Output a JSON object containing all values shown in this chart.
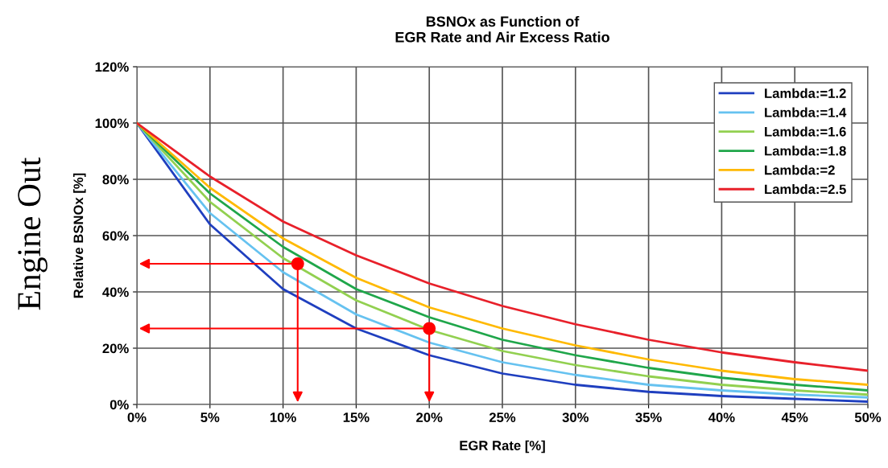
{
  "chart_data": {
    "type": "line",
    "title": "BSNOx as Function of\nEGR Rate and Air Excess Ratio",
    "xlabel": "EGR Rate [%]",
    "ylabel": "Relative BSNOx [%]",
    "annotations": [
      "Engine Out"
    ],
    "x": [
      0,
      5,
      10,
      15,
      20,
      25,
      30,
      35,
      40,
      45,
      50
    ],
    "series": [
      {
        "name": "Lambda:=1.2",
        "color": "#1f3fbf",
        "values": [
          100,
          64,
          41,
          27,
          17.5,
          11,
          7,
          4.5,
          3,
          2,
          1
        ]
      },
      {
        "name": "Lambda:=1.4",
        "color": "#66c2f0",
        "values": [
          100,
          68,
          47,
          32,
          22,
          15,
          10.5,
          7,
          5,
          3.5,
          2.5
        ]
      },
      {
        "name": "Lambda:=1.6",
        "color": "#92d050",
        "values": [
          100,
          72,
          52,
          37,
          26.5,
          19,
          14,
          10,
          7,
          5,
          3.5
        ]
      },
      {
        "name": "Lambda:=1.8",
        "color": "#1fa64a",
        "values": [
          100,
          75,
          56,
          41,
          31,
          23,
          17.5,
          13,
          9.5,
          7,
          5
        ]
      },
      {
        "name": "Lambda:=2",
        "color": "#ffb900",
        "values": [
          100,
          77,
          59,
          45,
          34.5,
          27,
          21,
          16,
          12,
          9,
          7
        ]
      },
      {
        "name": "Lambda:=2.5",
        "color": "#e8202a",
        "values": [
          100,
          81,
          65,
          53,
          43,
          35,
          28.5,
          23,
          18.5,
          15,
          12
        ]
      },
      {
        "type": "scatter",
        "color": "#ff0000",
        "marker": "circle",
        "x": [
          11,
          20
        ],
        "values": [
          50,
          27
        ]
      }
    ],
    "xlim": [
      0,
      50
    ],
    "ylim": [
      0,
      120
    ],
    "xticks": [
      {
        "value": 0,
        "label": "0%"
      },
      {
        "value": 5,
        "label": "5%"
      },
      {
        "value": 10,
        "label": "10%"
      },
      {
        "value": 15,
        "label": "15%"
      },
      {
        "value": 20,
        "label": "20%"
      },
      {
        "value": 25,
        "label": "25%"
      },
      {
        "value": 30,
        "label": "30%"
      },
      {
        "value": 35,
        "label": "35%"
      },
      {
        "value": 40,
        "label": "40%"
      },
      {
        "value": 45,
        "label": "45%"
      },
      {
        "value": 50,
        "label": "50%"
      }
    ],
    "yticks": [
      {
        "value": 0,
        "label": "0%"
      },
      {
        "value": 20,
        "label": "20%"
      },
      {
        "value": 40,
        "label": "40%"
      },
      {
        "value": 60,
        "label": "60%"
      },
      {
        "value": 80,
        "label": "80%"
      },
      {
        "value": 100,
        "label": "100%"
      },
      {
        "value": 120,
        "label": "120%"
      }
    ],
    "grid": true,
    "legend": "top right",
    "marker": "none",
    "line_style": "solid"
  }
}
